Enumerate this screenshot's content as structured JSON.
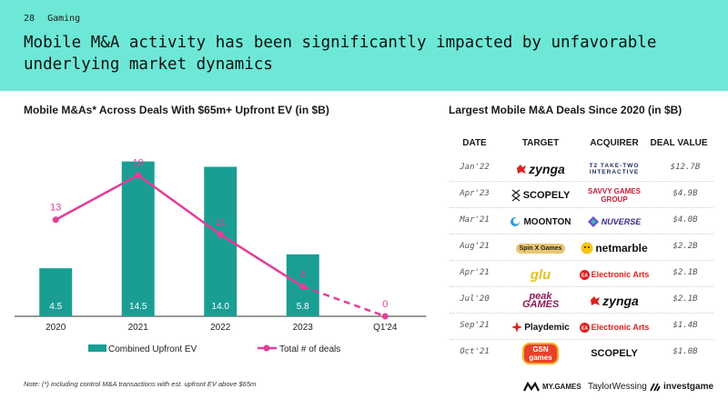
{
  "header": {
    "page_number": "28",
    "section": "Gaming",
    "title": "Mobile M&A activity has been significantly impacted by unfavorable underlying market dynamics"
  },
  "colors": {
    "header_bg": "#6ee8d6",
    "bar": "#1a9e94",
    "line": "#e23e98",
    "red": "#e02020"
  },
  "left_title": "Mobile M&As* Across Deals With $65m+ Upfront EV (in $B)",
  "chart_data": {
    "type": "bar",
    "title": "Mobile M&As* Across Deals With $65m+ Upfront EV (in $B)",
    "categories": [
      "2020",
      "2021",
      "2022",
      "2023",
      "Q1'24"
    ],
    "series": [
      {
        "name": "Combined Upfront EV",
        "type": "bar",
        "values": [
          4.5,
          14.5,
          14.0,
          5.8,
          null
        ],
        "labels": [
          "4.5",
          "14.5",
          "14.0",
          "5.8",
          ""
        ]
      },
      {
        "name": "Total # of deals",
        "type": "line",
        "values": [
          13,
          19,
          11,
          4,
          0
        ],
        "labels": [
          "13",
          "19",
          "11",
          "4",
          "0"
        ],
        "dashed_from_index": 3
      }
    ],
    "ylim_bars": [
      0,
      16
    ],
    "ylim_deals": [
      0,
      23
    ],
    "legend": [
      "Combined Upfront EV",
      "Total # of deals"
    ],
    "legend_position": "bottom"
  },
  "table": {
    "title": "Largest Mobile M&A Deals Since 2020 (in $B)",
    "headers": [
      "DATE",
      "TARGET",
      "ACQUIRER",
      "DEAL VALUE"
    ],
    "rows": [
      {
        "date": "Jan'22",
        "target": "zynga",
        "acquirer": "T2 TAKE-TWO INTERACTIVE",
        "value": "$12.7B"
      },
      {
        "date": "Apr'23",
        "target": "SCOPELY",
        "acquirer": "SAVVY GAMES GROUP",
        "value": "$4.9B"
      },
      {
        "date": "Mar'21",
        "target": "MOONTON",
        "acquirer": "NUVERSE",
        "value": "$4.0B"
      },
      {
        "date": "Aug'21",
        "target": "Spin X Games",
        "acquirer": "netmarble",
        "value": "$2.2B"
      },
      {
        "date": "Apr'21",
        "target": "glu",
        "acquirer": "Electronic Arts",
        "value": "$2.1B"
      },
      {
        "date": "Jul'20",
        "target": "peak GAMES",
        "acquirer": "zynga",
        "value": "$2.1B"
      },
      {
        "date": "Sep'21",
        "target": "Playdemic",
        "acquirer": "Electronic Arts",
        "value": "$1.4B"
      },
      {
        "date": "Oct'21",
        "target": "GSN games",
        "acquirer": "SCOPELY",
        "value": "$1.0B"
      }
    ]
  },
  "note": "Note: (*) including control M&A transactions with est. upfront EV above $65m",
  "footer": {
    "logo1": "MY.GAMES",
    "logo2": "TaylorWessing",
    "logo3": "investgame"
  }
}
